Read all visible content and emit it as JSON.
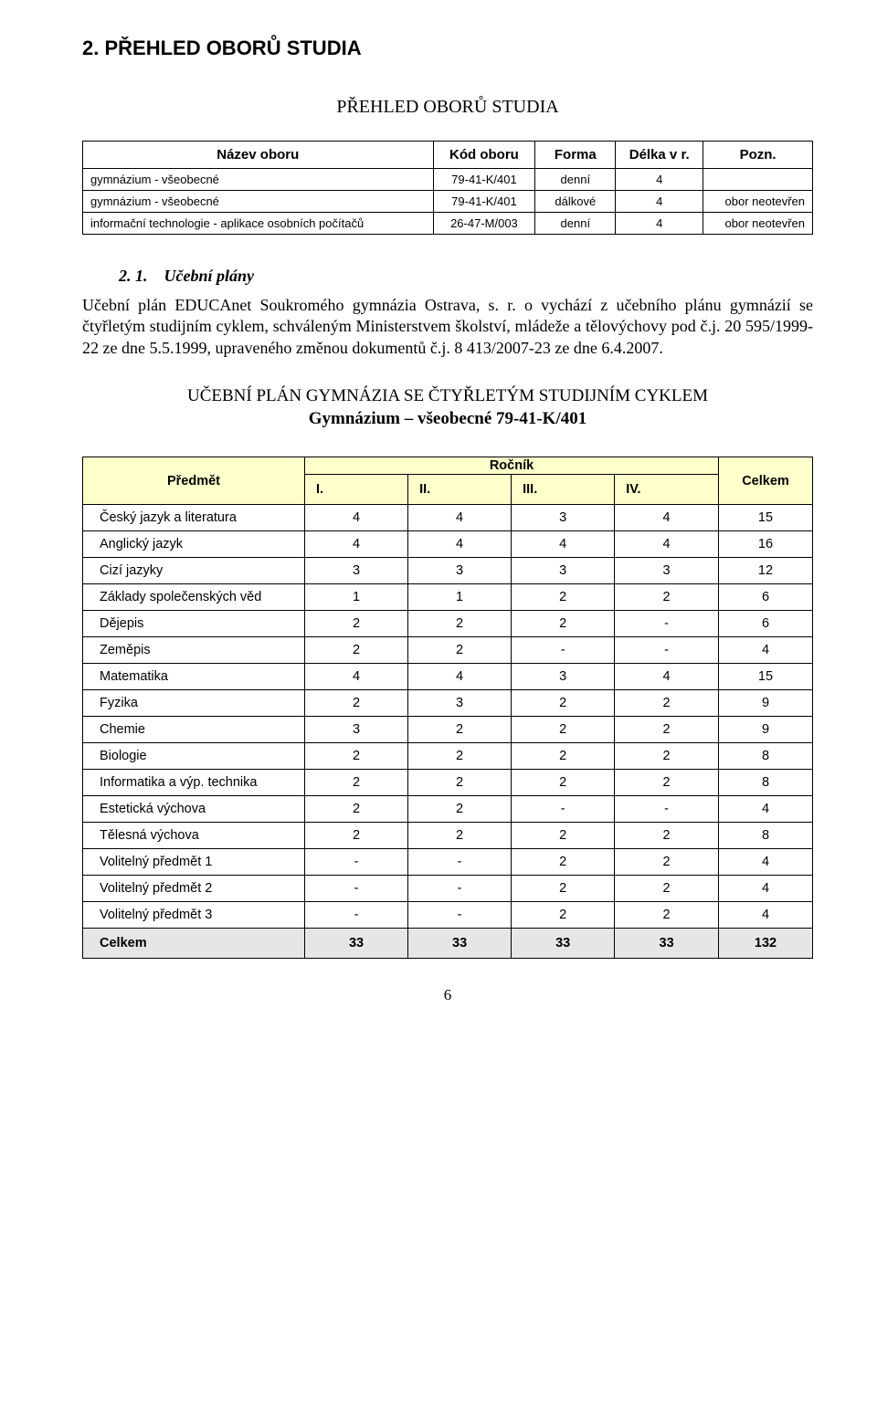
{
  "h2": "2. PŘEHLED OBORŮ STUDIA",
  "h2_sub": "PŘEHLED OBORŮ STUDIA",
  "overview_table": {
    "col_widths_pct": [
      48,
      14,
      11,
      12,
      15
    ],
    "header_bg": "#ffffff",
    "border_color": "#000000",
    "headers": [
      "Název oboru",
      "Kód oboru",
      "Forma",
      "Délka v r.",
      "Pozn."
    ],
    "rows": [
      [
        "gymnázium - všeobecné",
        "79-41-K/401",
        "denní",
        "4",
        ""
      ],
      [
        "gymnázium - všeobecné",
        "79-41-K/401",
        "dálkové",
        "4",
        "obor neotevřen"
      ],
      [
        "informační technologie - aplikace osobních počítačů",
        "26-47-M/003",
        "denní",
        "4",
        "obor neotevřen"
      ]
    ],
    "align": [
      "left",
      "center",
      "center",
      "center",
      "right"
    ]
  },
  "para_heading_num": "2. 1.",
  "para_heading_text": "Učební plány",
  "para_body": "Učební plán EDUCAnet Soukromého gymnázia Ostrava, s. r. o vychází z učebního plánu gymnázií se čtyřletým studijním cyklem, schváleným Ministerstvem školství, mládeže a tělovýchovy pod č.j. 20 595/1999-22 ze dne 5.5.1999, upraveného změnou dokumentů č.j. 8 413/2007-23 ze dne 6.4.2007.",
  "curriculum_title": "UČEBNÍ PLÁN GYMNÁZIA SE ČTYŘLETÝM STUDIJNÍM CYKLEM",
  "curriculum_sub": "Gymnázium – všeobecné   79-41-K/401",
  "curriculum_table": {
    "header_bg": "#ffffcc",
    "total_row_bg": "#e6e6e6",
    "border_color": "#000000",
    "font_family": "Arial",
    "fontsize_pt": 11,
    "col_subject": "Předmět",
    "col_year_group": "Ročník",
    "col_years": [
      "I.",
      "II.",
      "III.",
      "IV."
    ],
    "col_total": "Celkem",
    "rows": [
      {
        "subject": "Český jazyk a literatura",
        "vals": [
          "4",
          "4",
          "3",
          "4"
        ],
        "total": "15"
      },
      {
        "subject": "Anglický jazyk",
        "vals": [
          "4",
          "4",
          "4",
          "4"
        ],
        "total": "16"
      },
      {
        "subject": "Cizí jazyky",
        "vals": [
          "3",
          "3",
          "3",
          "3"
        ],
        "total": "12"
      },
      {
        "subject": "Základy společenských věd",
        "vals": [
          "1",
          "1",
          "2",
          "2"
        ],
        "total": "6"
      },
      {
        "subject": "Dějepis",
        "vals": [
          "2",
          "2",
          "2",
          "-"
        ],
        "total": "6"
      },
      {
        "subject": "Zeměpis",
        "vals": [
          "2",
          "2",
          "-",
          "-"
        ],
        "total": "4"
      },
      {
        "subject": "Matematika",
        "vals": [
          "4",
          "4",
          "3",
          "4"
        ],
        "total": "15"
      },
      {
        "subject": "Fyzika",
        "vals": [
          "2",
          "3",
          "2",
          "2"
        ],
        "total": "9"
      },
      {
        "subject": "Chemie",
        "vals": [
          "3",
          "2",
          "2",
          "2"
        ],
        "total": "9"
      },
      {
        "subject": "Biologie",
        "vals": [
          "2",
          "2",
          "2",
          "2"
        ],
        "total": "8"
      },
      {
        "subject": "Informatika a výp. technika",
        "vals": [
          "2",
          "2",
          "2",
          "2"
        ],
        "total": "8"
      },
      {
        "subject": "Estetická výchova",
        "vals": [
          "2",
          "2",
          "-",
          "-"
        ],
        "total": "4"
      },
      {
        "subject": "Tělesná výchova",
        "vals": [
          "2",
          "2",
          "2",
          "2"
        ],
        "total": "8"
      },
      {
        "subject": "Volitelný předmět 1",
        "vals": [
          "-",
          "-",
          "2",
          "2"
        ],
        "total": "4"
      },
      {
        "subject": "Volitelný předmět 2",
        "vals": [
          "-",
          "-",
          "2",
          "2"
        ],
        "total": "4"
      },
      {
        "subject": "Volitelný předmět 3",
        "vals": [
          "-",
          "-",
          "2",
          "2"
        ],
        "total": "4"
      }
    ],
    "total_row": {
      "subject": "Celkem",
      "vals": [
        "33",
        "33",
        "33",
        "33"
      ],
      "total": "132"
    }
  },
  "page_number": "6"
}
